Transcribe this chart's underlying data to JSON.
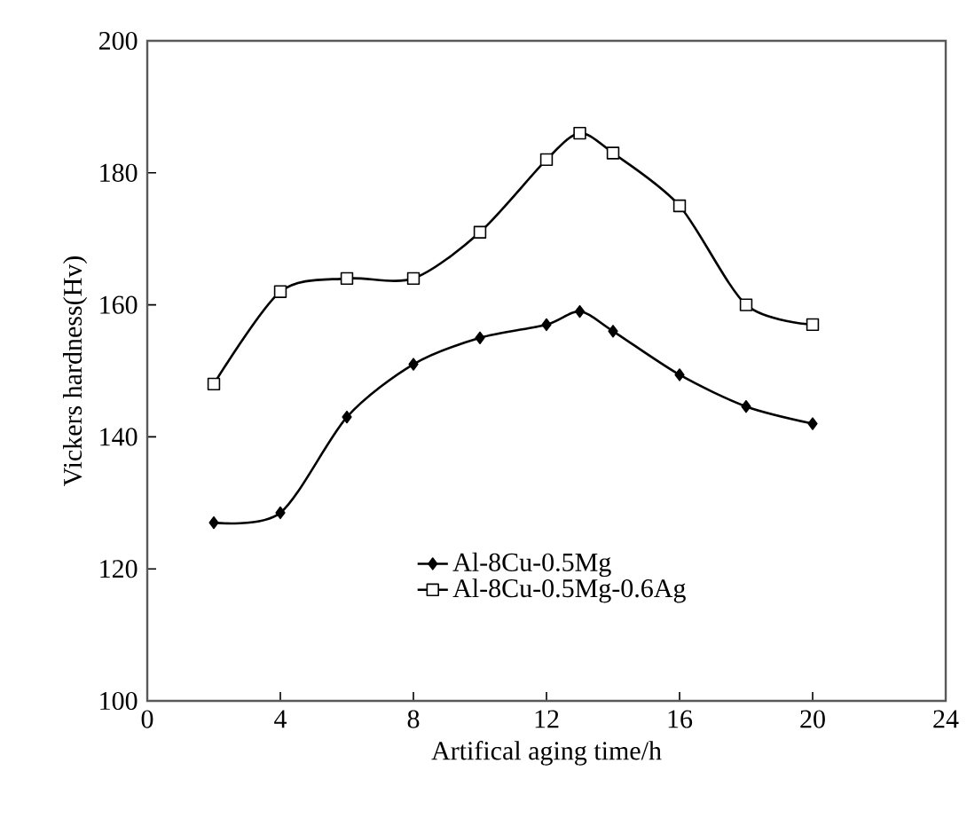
{
  "chart_data": {
    "type": "line",
    "xlabel": "Artifical aging time/h",
    "ylabel": "Vickers hardness(Hv)",
    "x": [
      2,
      4,
      6,
      8,
      10,
      12,
      13,
      14,
      16,
      18,
      20
    ],
    "series": [
      {
        "name": "Al-8Cu-0.5Mg",
        "color": "#000000",
        "marker": "diamond",
        "values": [
          127,
          128.5,
          143,
          151,
          155,
          157,
          159,
          156,
          149.4,
          144.6,
          142
        ]
      },
      {
        "name": "Al-8Cu-0.5Mg-0.6Ag",
        "color": "#000000",
        "marker": "square",
        "values": [
          148,
          162,
          164,
          164,
          171,
          182,
          186,
          183,
          175,
          160,
          157
        ]
      }
    ],
    "xlim": [
      0,
      24
    ],
    "xticks": [
      0,
      4,
      8,
      12,
      16,
      20,
      24
    ],
    "ylim": [
      100,
      200
    ],
    "yticks": [
      100,
      120,
      140,
      160,
      180,
      200
    ],
    "grid": false,
    "legend": "bottom",
    "line_style": "solid"
  }
}
